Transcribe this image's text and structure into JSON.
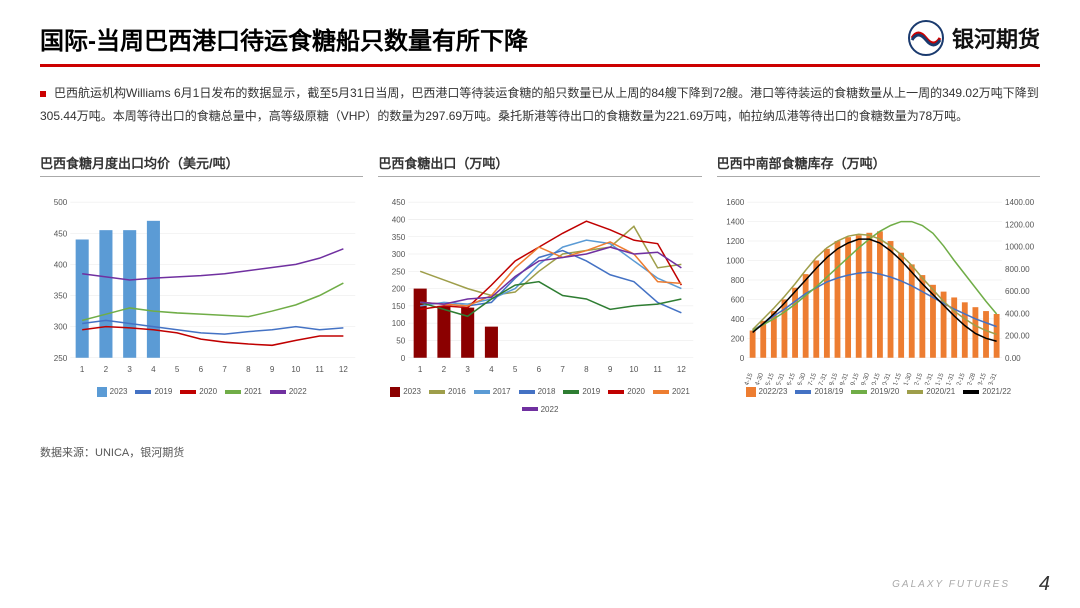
{
  "header": {
    "title": "国际-当周巴西港口待运食糖船只数量有所下降",
    "logo_text": "银河期货"
  },
  "body": {
    "paragraph": "巴西航运机构Williams 6月1日发布的数据显示，截至5月31日当周，巴西港口等待装运食糖的船只数量已从上周的84艘下降到72艘。港口等待装运的食糖数量从上一周的349.02万吨下降到305.44万吨。本周等待出口的食糖总量中，高等级原糖（VHP）的数量为297.69万吨。桑托斯港等待出口的食糖数量为221.69万吨，帕拉纳瓜港等待出口的食糖数量为78万吨。"
  },
  "source": "数据来源：UNICA，银河期货",
  "footer": {
    "brand": "GALAXY FUTURES",
    "page": "4"
  },
  "chart1": {
    "title": "巴西食糖月度出口均价（美元/吨）",
    "type": "bar-line",
    "x": [
      1,
      2,
      3,
      4,
      5,
      6,
      7,
      8,
      9,
      10,
      11,
      12
    ],
    "ylim": [
      250,
      500
    ],
    "ytick_step": 50,
    "bars": {
      "label": "2023",
      "color": "#5b9bd5",
      "values": [
        440,
        455,
        455,
        470,
        null,
        null,
        null,
        null,
        null,
        null,
        null,
        null
      ]
    },
    "lines": [
      {
        "label": "2019",
        "color": "#4472c4",
        "values": [
          305,
          310,
          305,
          300,
          295,
          290,
          288,
          292,
          295,
          300,
          295,
          298
        ]
      },
      {
        "label": "2020",
        "color": "#c00000",
        "values": [
          295,
          300,
          298,
          295,
          290,
          280,
          275,
          272,
          270,
          278,
          285,
          285
        ]
      },
      {
        "label": "2021",
        "color": "#70ad47",
        "values": [
          310,
          320,
          330,
          325,
          322,
          320,
          318,
          316,
          325,
          335,
          350,
          370
        ]
      },
      {
        "label": "2022",
        "color": "#7030a0",
        "values": [
          385,
          380,
          375,
          378,
          380,
          382,
          385,
          390,
          395,
          400,
          410,
          425
        ]
      }
    ]
  },
  "chart2": {
    "title": "巴西食糖出口（万吨）",
    "type": "bar-line",
    "x": [
      1,
      2,
      3,
      4,
      5,
      6,
      7,
      8,
      9,
      10,
      11,
      12
    ],
    "ylim": [
      0,
      450
    ],
    "ytick_step": 50,
    "bars": {
      "label": "2023",
      "color": "#8b0000",
      "values": [
        200,
        150,
        145,
        90,
        null,
        null,
        null,
        null,
        null,
        null,
        null,
        null
      ]
    },
    "lines": [
      {
        "label": "2016",
        "color": "#9e9e4a",
        "values": [
          250,
          225,
          200,
          180,
          190,
          250,
          300,
          310,
          320,
          380,
          260,
          270
        ]
      },
      {
        "label": "2017",
        "color": "#5b9bd5",
        "values": [
          150,
          160,
          155,
          170,
          200,
          270,
          320,
          340,
          330,
          280,
          230,
          200
        ]
      },
      {
        "label": "2018",
        "color": "#4472c4",
        "values": [
          160,
          155,
          150,
          160,
          230,
          290,
          310,
          280,
          240,
          220,
          160,
          130
        ]
      },
      {
        "label": "2019",
        "color": "#2e7d32",
        "values": [
          160,
          140,
          120,
          170,
          210,
          220,
          180,
          170,
          140,
          150,
          155,
          170
        ]
      },
      {
        "label": "2020",
        "color": "#c00000",
        "values": [
          140,
          150,
          145,
          210,
          280,
          320,
          360,
          395,
          370,
          340,
          330,
          210
        ]
      },
      {
        "label": "2021",
        "color": "#ed7d31",
        "values": [
          160,
          155,
          150,
          180,
          260,
          320,
          290,
          310,
          335,
          300,
          220,
          215
        ]
      },
      {
        "label": "2022",
        "color": "#7030a0",
        "values": [
          160,
          155,
          170,
          175,
          235,
          280,
          290,
          300,
          320,
          300,
          305,
          260
        ]
      }
    ]
  },
  "chart3": {
    "title": "巴西中南部食糖库存（万吨）",
    "type": "bar-line-dual",
    "x": [
      "4-15",
      "4-30",
      "5-15",
      "5-31",
      "6-15",
      "6-30",
      "7-15",
      "7-31",
      "8-15",
      "8-31",
      "9-15",
      "9-30",
      "10-15",
      "10-31",
      "11-15",
      "11-30",
      "12-15",
      "12-31",
      "1-15",
      "1-31",
      "2-15",
      "2-28",
      "3-15",
      "3-31"
    ],
    "ylim_left": [
      0,
      1600
    ],
    "ytick_left": 200,
    "ylim_right": [
      0,
      1400
    ],
    "ytick_right": 200,
    "bars": {
      "label": "2022/23",
      "color": "#ed7d31",
      "values": [
        280,
        380,
        480,
        600,
        720,
        860,
        1000,
        1120,
        1200,
        1240,
        1260,
        1285,
        1300,
        1200,
        1080,
        960,
        850,
        750,
        680,
        620,
        570,
        520,
        480,
        450
      ]
    },
    "lines": [
      {
        "label": "2018/19",
        "color": "#4472c4",
        "values": [
          280,
          350,
          430,
          500,
          580,
          660,
          720,
          780,
          820,
          850,
          870,
          880,
          860,
          830,
          790,
          740,
          680,
          620,
          560,
          500,
          450,
          400,
          360,
          320
        ]
      },
      {
        "label": "2019/20",
        "color": "#70ad47",
        "values": [
          280,
          340,
          400,
          470,
          550,
          640,
          730,
          830,
          930,
          1030,
          1130,
          1220,
          1300,
          1360,
          1400,
          1400,
          1360,
          1280,
          1150,
          1000,
          860,
          720,
          580,
          450
        ]
      },
      {
        "label": "2020/21",
        "color": "#9e9e4a",
        "values": [
          290,
          400,
          510,
          630,
          760,
          900,
          1030,
          1130,
          1200,
          1250,
          1270,
          1260,
          1220,
          1150,
          1060,
          950,
          820,
          700,
          580,
          480,
          400,
          330,
          280,
          240
        ]
      },
      {
        "label": "2021/22",
        "color": "#000000",
        "values": [
          260,
          350,
          450,
          560,
          680,
          800,
          920,
          1030,
          1120,
          1180,
          1220,
          1220,
          1180,
          1100,
          1000,
          880,
          760,
          650,
          540,
          430,
          330,
          250,
          200,
          170
        ]
      }
    ]
  }
}
